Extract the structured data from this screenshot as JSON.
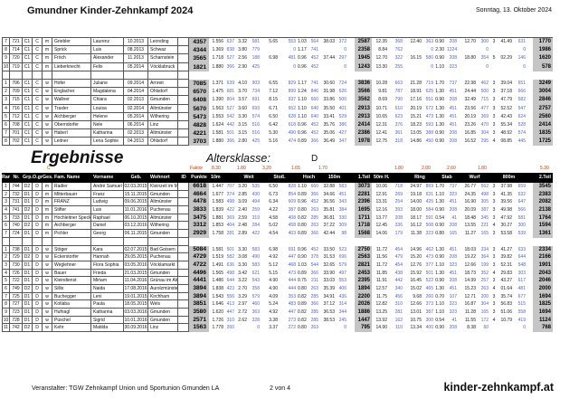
{
  "header": {
    "title": "Gmundner Kinder-Zehnkampf 2024",
    "date": "Sonntag, 13. Oktober 2024"
  },
  "section": {
    "title": "Ergebnisse",
    "ageclass_label": "Altersklasse:",
    "ageclass_value": "D",
    "class_letter": "C",
    "factor_label": "Faktor",
    "factors": [
      "8.30",
      "1.80",
      "3.20",
      "1.65",
      "1.70",
      "1.80",
      "2.00",
      "2.60",
      "1.80",
      "5.30"
    ]
  },
  "columns": [
    "Rang",
    "Nr.",
    "Grp.",
    "O.gr.",
    "Ges.",
    "Fam. Name",
    "Vorname",
    "Geb.",
    "Wohnort",
    "ID",
    "Punkte",
    "10m",
    "Weit",
    "Stoß.",
    "Hoch",
    "150m",
    "1.Teil",
    "50m H.",
    "Ring",
    "Stab",
    "Wurf",
    "800m",
    "2.Teil"
  ],
  "table_top": {
    "rows": [
      [
        "7",
        "721",
        "C1",
        "C",
        "m",
        "Griebler",
        "Laurenz",
        "10.2013",
        "Leonding",
        "",
        "4357",
        "1.556",
        "637",
        "3.32",
        "581",
        "5.65",
        "553",
        "1.03",
        "564",
        "38.03",
        "372",
        "2587",
        "12.35",
        "368",
        "12.40",
        "363",
        "0.90",
        "208",
        "12.70",
        "300",
        "3",
        "41.49",
        "631",
        "1770"
      ],
      [
        "8",
        "714",
        "C1",
        "C",
        "m",
        "Sprick",
        "Luis",
        "08.2013",
        "Schwaz",
        "",
        "4344",
        "1.369",
        "838",
        "3.80",
        "779",
        "",
        "0",
        "1.17",
        "741",
        "",
        "0",
        "2358",
        "8.84",
        "762",
        "",
        "0",
        "2.30",
        "1224",
        "",
        "0",
        "",
        "",
        "0",
        "1986"
      ],
      [
        "9",
        "720",
        "C1",
        "C",
        "m",
        "Fröch",
        "Alexander",
        "11.2013",
        "Scharnstein",
        "",
        "3565",
        "1.718",
        "527",
        "2.56",
        "188",
        "6.98",
        "481",
        "0.96",
        "452",
        "37.44",
        "297",
        "1945",
        "12.70",
        "322",
        "16.15",
        "580",
        "0.90",
        "208",
        "18.80",
        "354",
        "5",
        "02.29",
        "146",
        "1620"
      ],
      [
        "10",
        "719",
        "C1",
        "C",
        "m",
        "Lieberknecht",
        "Felix",
        "05.2014",
        "Vöcklabruck",
        "",
        "1821",
        "1.880",
        "366",
        "2.90",
        "425",
        "",
        "0",
        "0.96",
        "452",
        "",
        "0",
        "1243",
        "13.30",
        "255",
        "",
        "0",
        "1.10",
        "323",
        "",
        "0",
        "",
        "",
        "0",
        "578"
      ],
      [],
      [
        "1",
        "706",
        "C1",
        "C",
        "w",
        "Hofer",
        "Juliane",
        "09.2014",
        "Arnreit",
        "",
        "7085",
        "1.371",
        "639",
        "4.10",
        "903",
        "6.55",
        "829",
        "1.17",
        "741",
        "30.60",
        "724",
        "3836",
        "10.28",
        "663",
        "21.28",
        "719",
        "1.70",
        "737",
        "22.98",
        "462",
        "3",
        "39.04",
        "651",
        "3249"
      ],
      [
        "2",
        "709",
        "C1",
        "C",
        "w",
        "Englacher",
        "Magdalena",
        "04.2014",
        "Ohlsdorf",
        "",
        "6570",
        "1.475",
        "681",
        "3.70",
        "734",
        "7.12",
        "899",
        "1.24",
        "846",
        "31.98",
        "626",
        "3566",
        "9.81",
        "787",
        "18.91",
        "625",
        "1.30",
        "451",
        "24.44",
        "500",
        "3",
        "37.18",
        "666",
        "3004"
      ],
      [
        "3",
        "715",
        "C1",
        "C",
        "w",
        "Wallner",
        "Chiara",
        "02.2013",
        "Gmunden",
        "",
        "6408",
        "1.390",
        "804",
        "3.57",
        "691",
        "8.15",
        "937",
        "1.10",
        "660",
        "33.86",
        "500",
        "3562",
        "8.69",
        "790",
        "17.16",
        "551",
        "0.90",
        "208",
        "32.49",
        "715",
        "3",
        "47.79",
        "582",
        "2846"
      ],
      [
        "4",
        "716",
        "C1",
        "C",
        "w",
        "Traxler",
        "Louisa",
        "02.2014",
        "Altmünster",
        "",
        "5670",
        "1.563",
        "527",
        "3.60",
        "693",
        "6.71",
        "652",
        "1.10",
        "640",
        "35.50",
        "401",
        "2913",
        "10.71",
        "610",
        "20.19",
        "672",
        "1.30",
        "451",
        "23.56",
        "477",
        "3",
        "52.52",
        "547",
        "2757"
      ],
      [
        "5",
        "712",
        "C1",
        "C",
        "w",
        "Aichberger",
        "Helene",
        "05.2014",
        "Wilhering",
        "",
        "5473",
        "1.553",
        "542",
        "3.30",
        "574",
        "6.50",
        "628",
        "1.10",
        "640",
        "33.41",
        "529",
        "2913",
        "10.65",
        "623",
        "15.21",
        "473",
        "1.30",
        "451",
        "20.19",
        "369",
        "3",
        "42.43",
        "624",
        "2560"
      ],
      [
        "6",
        "708",
        "C1",
        "C",
        "w",
        "Oberndorfer",
        "Nele",
        "06.2014",
        "Linz",
        "",
        "4828",
        "1.624",
        "442",
        "3.15",
        "516",
        "6.42",
        "618",
        "0.96",
        "452",
        "35.76",
        "386",
        "2414",
        "12.31",
        "376",
        "18.23",
        "593",
        "1.30",
        "451",
        "23.26",
        "470",
        "3",
        "55.34",
        "528",
        "2414"
      ],
      [
        "7",
        "701",
        "C1",
        "C",
        "w",
        "Haberl",
        "Katharina",
        "02.2013",
        "Altmünster",
        "",
        "4221",
        "1.581",
        "501",
        "3.15",
        "516",
        "5.30",
        "490",
        "0.96",
        "452",
        "35.06",
        "427",
        "2386",
        "12.41",
        "361",
        "13.05",
        "388",
        "0.90",
        "208",
        "16.85",
        "304",
        "3",
        "48.92",
        "574",
        "1835"
      ],
      [
        "8",
        "702",
        "C1",
        "C",
        "w",
        "Leitner",
        "Lena Sophie",
        "04.2013",
        "Ohlsdorf",
        "",
        "3703",
        "1.880",
        "366",
        "2.80",
        "425",
        "5.16",
        "474",
        "0.89",
        "366",
        "36.49",
        "347",
        "1978",
        "12.75",
        "318",
        "14.86",
        "450",
        "0.90",
        "208",
        "16.52",
        "295",
        "4",
        "08.85",
        "445",
        "1725"
      ]
    ]
  },
  "table_bottom": {
    "rows": [
      [
        "1",
        "744",
        "D2",
        "D",
        "m",
        "Radler",
        "André Samuel",
        "02.03.2015",
        "Kleinzell im Mühlkr.",
        "",
        "6618",
        "1.447",
        "707",
        "3.20",
        "535",
        "6.50",
        "828",
        "1.10",
        "660",
        "32.88",
        "583",
        "3073",
        "10.06",
        "718",
        "24.97",
        "869",
        "1.70",
        "737",
        "26.77",
        "562",
        "3",
        "37.98",
        "659",
        "3545"
      ],
      [
        "2",
        "732",
        "D1",
        "D",
        "m",
        "Mitterbauer",
        "Franz",
        "15.11.2015",
        "Gmunden",
        "",
        "4664",
        "1.677",
        "374",
        "2.85",
        "430",
        "6.73",
        "854",
        "0.89",
        "366",
        "34.66",
        "451",
        "2281",
        "12.91",
        "269",
        "19.18",
        "631",
        "1.10",
        "323",
        "24.35",
        "498",
        "3",
        "41.35",
        "632",
        "2383"
      ],
      [
        "3",
        "731",
        "D1",
        "D",
        "m",
        "FRANZ",
        "Ludwig",
        "09.06.2015",
        "Altmünster",
        "",
        "4478",
        "1.583",
        "498",
        "3.09",
        "494",
        "6.34",
        "609",
        "0.96",
        "452",
        "36.56",
        "343",
        "2396",
        "13.31",
        "254",
        "14.00",
        "425",
        "1.30",
        "451",
        "16.90",
        "305",
        "3",
        "39.56",
        "647",
        "2082"
      ],
      [
        "4",
        "741",
        "D2",
        "D",
        "m",
        "Stifter",
        "Luis",
        "11.01.2016",
        "Puchenau",
        "",
        "3833",
        "1.839",
        "422",
        "2.40",
        "259",
        "4.22",
        "387",
        "0.80",
        "263",
        "35.81",
        "384",
        "1695",
        "12.16",
        "393",
        "18.00",
        "584",
        "0.90",
        "208",
        "20.09",
        "387",
        "3",
        "49.98",
        "566",
        "2138"
      ],
      [
        "5",
        "733",
        "D1",
        "D",
        "m",
        "Hochleitner Speck",
        "Raphael",
        "06.10.2015",
        "Altmünster",
        "",
        "3475",
        "1.881",
        "369",
        "2.59",
        "319",
        "4.58",
        "408",
        "0.82",
        "285",
        "36.81",
        "330",
        "1711",
        "13.77",
        "208",
        "18.17",
        "591",
        "0.54",
        "41",
        "18.48",
        "345",
        "3",
        "47.92",
        "581",
        "1764"
      ],
      [
        "6",
        "740",
        "D2",
        "D",
        "m",
        "Aichberger",
        "Daniel",
        "03.12.2016",
        "Wilhering",
        "",
        "3312",
        "1.853",
        "404",
        "2.48",
        "284",
        "5.02",
        "458",
        "0.80",
        "263",
        "37.22",
        "309",
        "1718",
        "12.45",
        "336",
        "16.12",
        "508",
        "0.90",
        "208",
        "13.55",
        "221",
        "4",
        "30.27",
        "300",
        "1594"
      ],
      [
        "7",
        "724",
        "D1",
        "D",
        "m",
        "Pichler",
        "Georg",
        "06.11.2015",
        "Gmunden",
        "",
        "2929",
        "1.758",
        "281",
        "2.89",
        "422",
        "4.54",
        "403",
        "0.89",
        "366",
        "42.44",
        "98",
        "1568",
        "14.06",
        "179",
        "11.38",
        "323",
        "0.80",
        "165",
        "11.27",
        "165",
        "3",
        "53.58",
        "539",
        "1361"
      ],
      [],
      [
        "1",
        "738",
        "D1",
        "D",
        "w",
        "Stöger",
        "Kara",
        "02.07.2015",
        "Bad Goisern",
        "",
        "5084",
        "1.581",
        "501",
        "3.30",
        "583",
        "6.98",
        "691",
        "0.96",
        "452",
        "33.50",
        "523",
        "2750",
        "11.72",
        "454",
        "14.96",
        "462",
        "1.30",
        "451",
        "18.03",
        "334",
        "3",
        "41.27",
        "633",
        "2334"
      ],
      [
        "2",
        "729",
        "D2",
        "D",
        "w",
        "Eckerstorfer",
        "Hannah",
        "29.05.2015",
        "Puchenau",
        "",
        "4729",
        "1.519",
        "582",
        "3.08",
        "490",
        "4.92",
        "447",
        "0.90",
        "378",
        "31.53",
        "696",
        "2563",
        "11.56",
        "479",
        "15.20",
        "473",
        "0.90",
        "208",
        "19.22",
        "364",
        "3",
        "39.82",
        "644",
        "2166"
      ],
      [
        "3",
        "730",
        "D1",
        "D",
        "w",
        "Weglehner",
        "Flora Sophia",
        "03.05.2016",
        "Vöcklamarkt",
        "",
        "4722",
        "1.491",
        "636",
        "3.30",
        "583",
        "5.12",
        "468",
        "1.03",
        "544",
        "32.65",
        "579",
        "2821",
        "11.72",
        "454",
        "12.76",
        "377",
        "1.10",
        "323",
        "12.66",
        "199",
        "3",
        "52.31",
        "548",
        "1901"
      ],
      [
        "4",
        "726",
        "D1",
        "D",
        "w",
        "Bauer",
        "Frieda",
        "21.03.2015",
        "Gmunden",
        "",
        "4496",
        "1.565",
        "498",
        "3.42",
        "621",
        "5.15",
        "473",
        "0.89",
        "366",
        "33.90",
        "497",
        "2453",
        "11.85",
        "438",
        "15.92",
        "501",
        "1.30",
        "451",
        "18.73",
        "352",
        "4",
        "29.83",
        "303",
        "2043"
      ],
      [
        "5",
        "722",
        "D1",
        "D",
        "w",
        "Kleindienst",
        "Miriam",
        "11.04.2016",
        "Grünau im Almtal",
        "",
        "4441",
        "1.486",
        "644",
        "3.22",
        "543",
        "4.90",
        "444",
        "0.75",
        "211",
        "33.03",
        "553",
        "2395",
        "11.91",
        "442",
        "16.45",
        "522",
        "0.90",
        "208",
        "14.99",
        "257",
        "3",
        "43.27",
        "617",
        "2046"
      ],
      [
        "6",
        "749",
        "D2",
        "D",
        "w",
        "Sillis",
        "Naida",
        "17.08.2016",
        "Aurolzmünster",
        "",
        "3894",
        "1.838",
        "423",
        "2.70",
        "358",
        "4.90",
        "444",
        "0.80",
        "263",
        "35.39",
        "406",
        "1894",
        "12.57",
        "340",
        "15.02",
        "465",
        "1.30",
        "451",
        "15.23",
        "263",
        "4",
        "01.64",
        "481",
        "2000"
      ],
      [
        "7",
        "725",
        "D1",
        "D",
        "w",
        "Buchegger",
        "Leni",
        "19.01.2015",
        "Kirchham",
        "",
        "3894",
        "1.543",
        "556",
        "3.29",
        "579",
        "4.09",
        "353",
        "0.82",
        "285",
        "34.91",
        "436",
        "2200",
        "11.75",
        "456",
        "9.68",
        "260",
        "0.70",
        "107",
        "12.71",
        "200",
        "3",
        "35.74",
        "677",
        "1694"
      ],
      [
        "8",
        "727",
        "D1",
        "D",
        "w",
        "Kotlaba",
        "Paula",
        "18.05.2015",
        "Wels",
        "",
        "3851",
        "1.646",
        "413",
        "2.97",
        "460",
        "5.24",
        "483",
        "0.89",
        "366",
        "37.12",
        "314",
        "2026",
        "12.82",
        "310",
        "12.66",
        "373",
        "1.10",
        "323",
        "16.87",
        "304",
        "3",
        "56.83",
        "515",
        "1825"
      ],
      [
        "9",
        "723",
        "D1",
        "D",
        "w",
        "Hufnagl",
        "Katharina",
        "03.03.2016",
        "Gmunden",
        "",
        "3580",
        "1.620",
        "447",
        "2.72",
        "363",
        "4.92",
        "447",
        "0.82",
        "285",
        "36.53",
        "344",
        "1886",
        "13.25",
        "281",
        "13.01",
        "387",
        "1.10",
        "323",
        "11.28",
        "165",
        "3",
        "51.06",
        "558",
        "1694"
      ],
      [
        "10",
        "728",
        "D1",
        "D",
        "w",
        "Püschel",
        "Sigrid",
        "10.01.2016",
        "Gmunden",
        "",
        "2571",
        "1.726",
        "310",
        "2.62",
        "328",
        "3.38",
        "273",
        "0.82",
        "285",
        "38.53",
        "245",
        "1447",
        "13.92",
        "162",
        "10.75",
        "300",
        "0.54",
        "41",
        "11.55",
        "172",
        "4",
        "10.79",
        "419",
        "1124"
      ],
      [
        "11",
        "742",
        "D2",
        "D",
        "w",
        "Kehr",
        "Matilda",
        "30.09.2016",
        "Linz",
        "",
        "1563",
        "1.778",
        "260",
        "",
        "0",
        "3.37",
        "272",
        "0.80",
        "263",
        "",
        "0",
        "795",
        "14.90",
        "110",
        "13.34",
        "400",
        "0.90",
        "208",
        "8.38",
        "60",
        "",
        "",
        "0",
        "768"
      ]
    ]
  },
  "footer": {
    "left": "Veranstalter: TGW Zehnkampf Union und Sportunion Gmunden LA",
    "center": "2 von 4",
    "right": "kinder-zehnkampf.at"
  }
}
